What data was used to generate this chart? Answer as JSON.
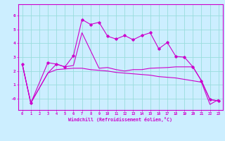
{
  "xlabel": "Windchill (Refroidissement éolien,°C)",
  "background_color": "#cceeff",
  "grid_color": "#99dddd",
  "line_color": "#cc00cc",
  "x_ticks": [
    0,
    1,
    2,
    3,
    4,
    5,
    6,
    7,
    8,
    9,
    10,
    11,
    12,
    13,
    14,
    15,
    16,
    17,
    18,
    19,
    20,
    21,
    22,
    23
  ],
  "y_ticks": [
    0,
    1,
    2,
    3,
    4,
    5,
    6
  ],
  "y_tick_labels": [
    "-0",
    "1",
    "2",
    "3",
    "4",
    "5",
    "6"
  ],
  "ylim": [
    -0.8,
    6.8
  ],
  "xlim": [
    -0.5,
    23.5
  ],
  "series1_x": [
    0,
    1,
    3,
    4,
    5,
    6,
    7,
    8,
    9,
    10,
    11,
    12,
    13,
    14,
    15,
    16,
    17,
    18,
    19,
    20,
    21,
    22,
    23
  ],
  "series1_y": [
    2.5,
    -0.3,
    2.6,
    2.5,
    2.3,
    3.1,
    5.7,
    5.35,
    5.5,
    4.5,
    4.3,
    4.55,
    4.25,
    4.55,
    4.75,
    3.6,
    4.05,
    3.05,
    3.0,
    2.3,
    1.3,
    -0.05,
    -0.15
  ],
  "series2_x": [
    0,
    1,
    3,
    4,
    5,
    6,
    7,
    9,
    10,
    11,
    12,
    13,
    14,
    15,
    17,
    18,
    19,
    20,
    21,
    22,
    23
  ],
  "series2_y": [
    2.5,
    -0.3,
    1.85,
    2.5,
    2.3,
    2.4,
    4.75,
    2.2,
    2.25,
    2.1,
    2.0,
    2.1,
    2.1,
    2.2,
    2.25,
    2.3,
    2.3,
    2.3,
    1.3,
    -0.05,
    -0.15
  ],
  "series3_x": [
    0,
    1,
    3,
    4,
    5,
    6,
    7,
    8,
    9,
    10,
    11,
    12,
    13,
    14,
    15,
    16,
    17,
    18,
    19,
    20,
    21,
    22,
    23
  ],
  "series3_y": [
    2.5,
    -0.3,
    1.85,
    2.1,
    2.15,
    2.2,
    2.2,
    2.1,
    2.05,
    2.0,
    1.9,
    1.85,
    1.8,
    1.75,
    1.7,
    1.6,
    1.55,
    1.5,
    1.4,
    1.3,
    1.2,
    -0.4,
    -0.05
  ]
}
